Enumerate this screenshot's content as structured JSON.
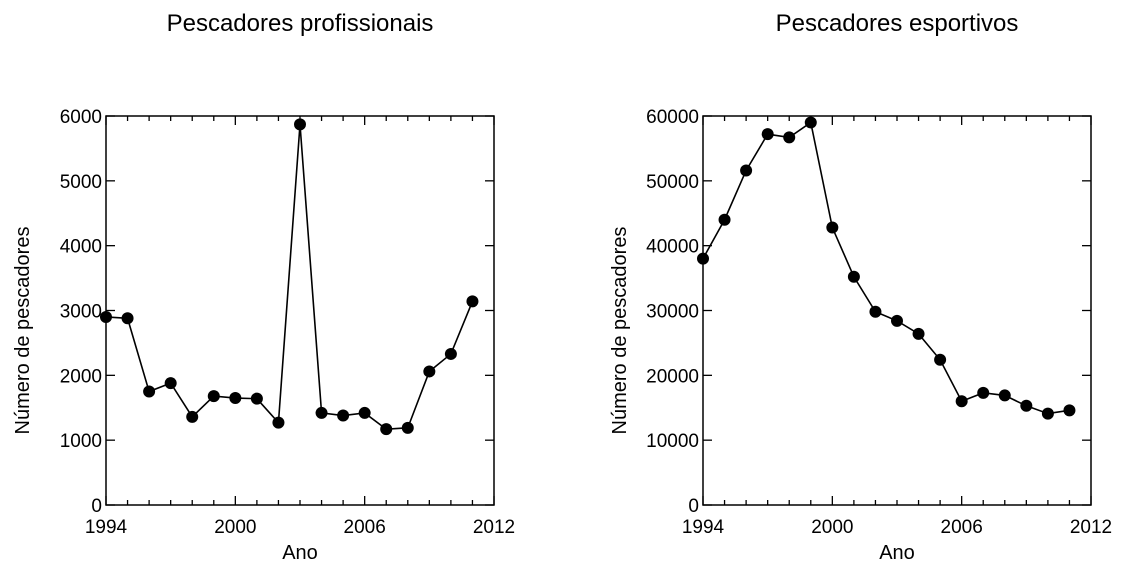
{
  "chart_data": [
    {
      "type": "line",
      "title": "Pescadores profissionais",
      "xlabel": "Ano",
      "ylabel": "Número de pescadores",
      "xlim": [
        1994,
        2012
      ],
      "ylim": [
        0,
        6000
      ],
      "xticks": [
        1994,
        2000,
        2006,
        2012
      ],
      "yticks": [
        0,
        1000,
        2000,
        3000,
        4000,
        5000,
        6000
      ],
      "x": [
        1994,
        1995,
        1996,
        1997,
        1998,
        1999,
        2000,
        2001,
        2002,
        2003,
        2004,
        2005,
        2006,
        2007,
        2008,
        2009,
        2010,
        2011
      ],
      "values": [
        2900,
        2880,
        1750,
        1880,
        1360,
        1680,
        1650,
        1640,
        1270,
        5870,
        1420,
        1380,
        1420,
        1170,
        1190,
        2060,
        2330,
        3140
      ],
      "marker": "filled-circle",
      "color": "#000000"
    },
    {
      "type": "line",
      "title": "Pescadores esportivos",
      "xlabel": "Ano",
      "ylabel": "Número de pescadores",
      "xlim": [
        1994,
        2012
      ],
      "ylim": [
        0,
        60000
      ],
      "xticks": [
        1994,
        2000,
        2006,
        2012
      ],
      "yticks": [
        0,
        10000,
        20000,
        30000,
        40000,
        50000,
        60000
      ],
      "x": [
        1994,
        1995,
        1996,
        1997,
        1998,
        1999,
        2000,
        2001,
        2002,
        2003,
        2004,
        2005,
        2006,
        2007,
        2008,
        2009,
        2010,
        2011
      ],
      "values": [
        38000,
        44000,
        51600,
        57200,
        56700,
        59000,
        42800,
        35200,
        29800,
        28400,
        26400,
        22400,
        16000,
        17300,
        16900,
        15300,
        14100,
        14600
      ],
      "marker": "filled-circle",
      "color": "#000000"
    }
  ]
}
